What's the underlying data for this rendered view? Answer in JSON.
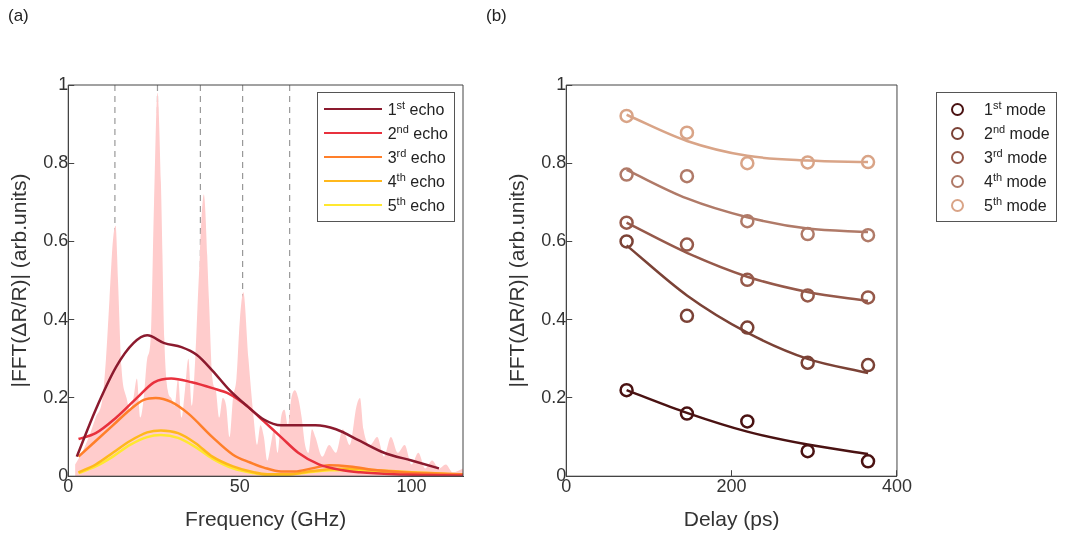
{
  "chart_data": [
    {
      "type": "line",
      "title": "(a)",
      "xlabel": "Frequency (GHz)",
      "ylabel": "|FFT(ΔR/R)| (arb.units)",
      "xlim": [
        0,
        115
      ],
      "xticks": [
        0,
        50,
        100
      ],
      "ylim": [
        0,
        1
      ],
      "yticks": [
        0,
        0.2,
        0.4,
        0.6,
        0.8,
        1
      ],
      "legend": "top right",
      "grid": false,
      "ref_lines": [
        {
          "axis": "x",
          "value": 13.6,
          "color": "#999999",
          "line_style": "dashed"
        },
        {
          "axis": "x",
          "value": 26,
          "color": "#999999",
          "line_style": "dashed"
        },
        {
          "axis": "x",
          "value": 38.5,
          "color": "#999999",
          "line_style": "dashed"
        },
        {
          "axis": "x",
          "value": 50.8,
          "color": "#999999",
          "line_style": "dashed"
        },
        {
          "axis": "x",
          "value": 64.5,
          "color": "#999999",
          "line_style": "dashed"
        }
      ],
      "series": [
        {
          "name": "1$^{st}$ echo",
          "color": "#8b1a2e",
          "x": [
            2.5,
            8,
            14,
            19,
            23,
            28,
            33,
            37.5,
            42,
            47,
            52,
            57,
            62,
            67,
            72,
            78,
            85,
            92,
            100,
            108
          ],
          "values": [
            0.05,
            0.17,
            0.28,
            0.34,
            0.36,
            0.34,
            0.33,
            0.31,
            0.27,
            0.22,
            0.18,
            0.145,
            0.13,
            0.13,
            0.13,
            0.12,
            0.09,
            0.06,
            0.04,
            0.02
          ]
        },
        {
          "name": "2$^{nd}$ echo",
          "color": "#e8313d",
          "x": [
            3,
            8,
            14,
            20,
            25,
            30,
            36,
            42,
            47,
            52,
            57,
            62,
            67,
            73,
            80,
            85,
            95,
            105,
            115
          ],
          "values": [
            0.095,
            0.11,
            0.15,
            0.2,
            0.24,
            0.25,
            0.24,
            0.225,
            0.21,
            0.18,
            0.14,
            0.1,
            0.06,
            0.03,
            0.015,
            0.01,
            0.005,
            0.003,
            0.002
          ]
        },
        {
          "name": "3$^{rd}$ echo",
          "color": "#ff7f2a",
          "x": [
            3,
            8,
            13,
            18,
            22,
            25.5,
            30,
            35,
            42,
            48,
            53,
            57,
            62,
            66,
            71,
            76,
            82,
            90,
            100,
            115
          ],
          "values": [
            0.05,
            0.09,
            0.13,
            0.17,
            0.195,
            0.2,
            0.19,
            0.16,
            0.1,
            0.055,
            0.035,
            0.022,
            0.012,
            0.012,
            0.02,
            0.028,
            0.025,
            0.015,
            0.008,
            0.005
          ]
        },
        {
          "name": "4$^{th}$ echo",
          "color": "#ffb81c",
          "x": [
            3,
            8,
            13,
            18,
            23,
            27,
            32,
            37,
            42,
            48,
            54,
            58,
            64,
            70,
            76,
            82,
            90,
            100,
            115
          ],
          "values": [
            0.01,
            0.03,
            0.06,
            0.09,
            0.112,
            0.117,
            0.11,
            0.085,
            0.05,
            0.025,
            0.01,
            0.005,
            0.005,
            0.012,
            0.018,
            0.02,
            0.015,
            0.01,
            0.005
          ]
        },
        {
          "name": "5$^{th}$ echo",
          "color": "#ffe830",
          "x": [
            3,
            8,
            13,
            18,
            23,
            27,
            32,
            37,
            42,
            48,
            54,
            58,
            64,
            70,
            76,
            82,
            90,
            100,
            115
          ],
          "values": [
            0.008,
            0.025,
            0.05,
            0.08,
            0.1,
            0.105,
            0.098,
            0.075,
            0.045,
            0.02,
            0.008,
            0.004,
            0.004,
            0.01,
            0.015,
            0.016,
            0.012,
            0.008,
            0.004
          ]
        },
        {
          "type": "area",
          "color": "#ffcccc",
          "x": [
            2,
            4,
            6,
            8,
            10,
            11,
            12,
            13,
            13.8,
            14.5,
            15.5,
            17,
            18,
            19,
            20,
            21,
            22,
            23,
            24,
            25,
            26,
            27,
            28,
            29,
            30,
            31,
            32,
            33,
            34,
            35,
            36,
            37,
            38,
            39.5,
            41,
            42,
            43,
            44,
            45,
            46,
            47,
            48,
            49,
            50,
            51,
            52.5,
            54,
            55,
            56,
            57,
            58,
            59,
            60,
            61,
            62,
            63,
            64,
            65,
            66,
            67,
            68,
            69,
            70,
            71,
            72,
            74,
            76,
            78,
            80,
            82,
            84,
            85,
            86,
            88,
            90,
            92,
            94,
            96,
            98,
            100,
            102,
            104,
            106,
            108,
            110,
            112,
            115
          ],
          "values": [
            0.03,
            0.06,
            0.1,
            0.15,
            0.2,
            0.3,
            0.45,
            0.6,
            0.64,
            0.5,
            0.28,
            0.2,
            0.17,
            0.2,
            0.25,
            0.15,
            0.2,
            0.3,
            0.35,
            0.7,
            0.98,
            0.75,
            0.35,
            0.22,
            0.2,
            0.18,
            0.25,
            0.15,
            0.22,
            0.3,
            0.18,
            0.3,
            0.5,
            0.72,
            0.45,
            0.25,
            0.22,
            0.15,
            0.2,
            0.18,
            0.1,
            0.2,
            0.25,
            0.4,
            0.47,
            0.3,
            0.15,
            0.08,
            0.13,
            0.1,
            0.04,
            0.08,
            0.12,
            0.06,
            0.15,
            0.17,
            0.13,
            0.2,
            0.22,
            0.2,
            0.15,
            0.08,
            0.06,
            0.12,
            0.1,
            0.05,
            0.08,
            0.06,
            0.12,
            0.08,
            0.18,
            0.2,
            0.12,
            0.08,
            0.1,
            0.05,
            0.1,
            0.06,
            0.08,
            0.03,
            0.06,
            0.02,
            0.04,
            0.02,
            0.03,
            0.01,
            0.02
          ]
        }
      ]
    },
    {
      "type": "scatter",
      "title": "(b)",
      "xlabel": "Delay (ps)",
      "ylabel": "|FFT(ΔR/R)| (arb.units)",
      "xlim": [
        0,
        400
      ],
      "xticks": [
        0,
        200,
        400
      ],
      "ylim": [
        0,
        1
      ],
      "yticks": [
        0,
        0.2,
        0.4,
        0.6,
        0.8,
        1
      ],
      "legend": "right",
      "grid": false,
      "marker": "circle",
      "series": [
        {
          "name": "1$^{st}$ mode",
          "color": "#4a1212",
          "x": [
            73,
            146,
            219,
            292,
            365
          ],
          "values": [
            0.22,
            0.16,
            0.14,
            0.064,
            0.038
          ]
        },
        {
          "name": "2$^{nd}$ mode",
          "color": "#7b4236",
          "x": [
            73,
            146,
            219,
            292,
            365
          ],
          "values": [
            0.6,
            0.41,
            0.38,
            0.29,
            0.284
          ]
        },
        {
          "name": "3$^{rd}$ mode",
          "color": "#96594a",
          "x": [
            73,
            146,
            219,
            292,
            365
          ],
          "values": [
            0.648,
            0.592,
            0.502,
            0.462,
            0.457
          ]
        },
        {
          "name": "4$^{th}$ mode",
          "color": "#b07a68",
          "x": [
            73,
            146,
            219,
            292,
            365
          ],
          "values": [
            0.771,
            0.767,
            0.652,
            0.619,
            0.616
          ]
        },
        {
          "name": "5$^{th}$ mode",
          "color": "#d9a487",
          "x": [
            73,
            146,
            219,
            292,
            365
          ],
          "values": [
            0.921,
            0.878,
            0.8,
            0.802,
            0.803
          ]
        },
        {
          "type": "line",
          "marker": "none",
          "color": "#4a1212",
          "x": [
            73,
            146,
            219,
            292,
            365
          ],
          "values": [
            0.22,
            0.162,
            0.114,
            0.081,
            0.057
          ]
        },
        {
          "type": "line",
          "marker": "none",
          "color": "#7b4236",
          "x": [
            73,
            146,
            219,
            292,
            365
          ],
          "values": [
            0.59,
            0.462,
            0.367,
            0.3,
            0.264
          ]
        },
        {
          "type": "line",
          "marker": "none",
          "color": "#96594a",
          "x": [
            73,
            146,
            219,
            292,
            365
          ],
          "values": [
            0.648,
            0.571,
            0.51,
            0.471,
            0.448
          ]
        },
        {
          "type": "line",
          "marker": "none",
          "color": "#b07a68",
          "x": [
            73,
            146,
            219,
            292,
            365
          ],
          "values": [
            0.783,
            0.71,
            0.662,
            0.633,
            0.624
          ]
        },
        {
          "type": "line",
          "marker": "none",
          "color": "#d9a487",
          "x": [
            73,
            146,
            219,
            292,
            365
          ],
          "values": [
            0.924,
            0.857,
            0.819,
            0.807,
            0.803
          ]
        }
      ]
    }
  ]
}
